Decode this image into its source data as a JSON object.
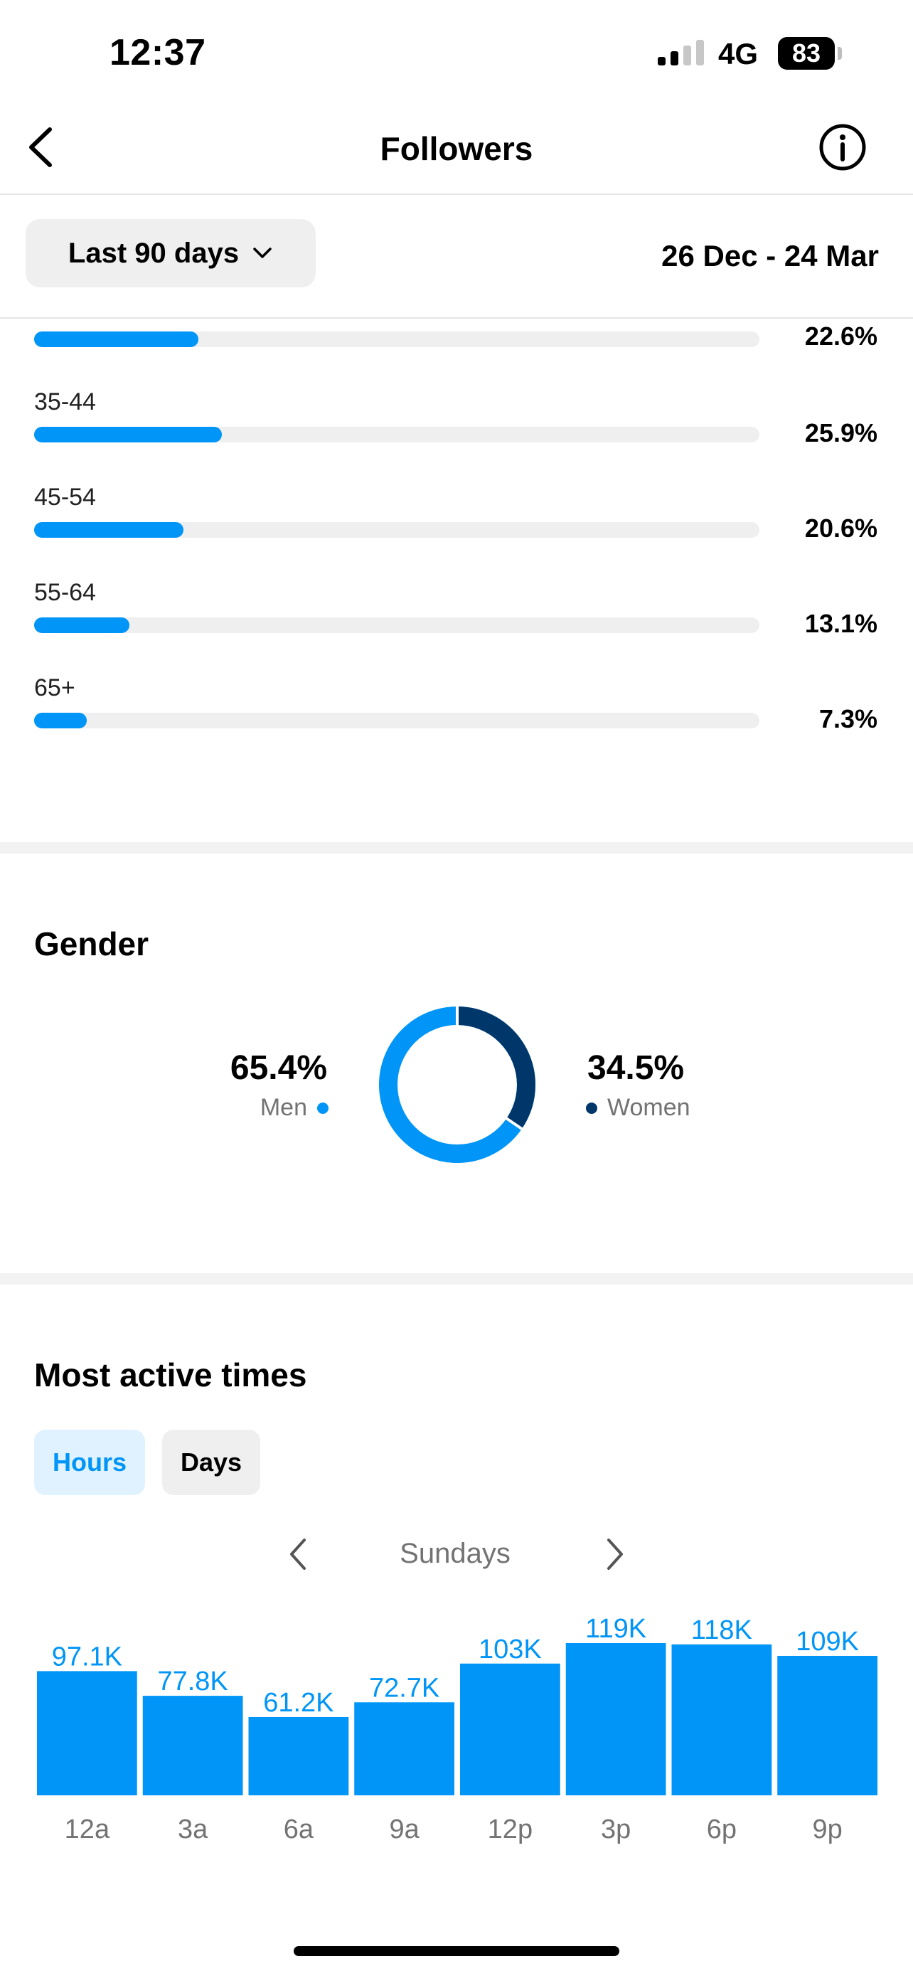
{
  "status_bar": {
    "time": "12:37",
    "network": "4G",
    "battery": "83"
  },
  "header": {
    "title": "Followers",
    "back_icon": "chevron-left-icon",
    "info_icon": "info-circle-icon"
  },
  "filter": {
    "range_label": "Last 90 days",
    "date_range": "26 Dec - 24 Mar"
  },
  "age": {
    "rows": [
      {
        "label": "",
        "percent_text": "22.6%",
        "value": 22.6
      },
      {
        "label": "35-44",
        "percent_text": "25.9%",
        "value": 25.9
      },
      {
        "label": "45-54",
        "percent_text": "20.6%",
        "value": 20.6
      },
      {
        "label": "55-64",
        "percent_text": "13.1%",
        "value": 13.1
      },
      {
        "label": "65+",
        "percent_text": "7.3%",
        "value": 7.3
      }
    ],
    "bar_color": "#0095f6",
    "track_color": "#efefef"
  },
  "gender": {
    "title": "Gender",
    "men": {
      "percent": "65.4%",
      "label": "Men",
      "value": 65.4,
      "color": "#0095f6"
    },
    "women": {
      "percent": "34.5%",
      "label": "Women",
      "value": 34.5,
      "color": "#00376b"
    }
  },
  "active_times": {
    "title": "Most active times",
    "tabs": {
      "hours": "Hours",
      "days": "Days",
      "selected": "Hours"
    },
    "day": "Sundays"
  },
  "chart_data": {
    "type": "bar",
    "categories": [
      "12a",
      "3a",
      "6a",
      "9a",
      "12p",
      "3p",
      "6p",
      "9p"
    ],
    "values": [
      97100,
      77800,
      61200,
      72700,
      103000,
      119000,
      118000,
      109000
    ],
    "value_labels": [
      "97.1K",
      "77.8K",
      "61.2K",
      "72.7K",
      "103K",
      "119K",
      "118K",
      "109K"
    ],
    "color": "#0095f6",
    "ylim": [
      0,
      119000
    ]
  }
}
